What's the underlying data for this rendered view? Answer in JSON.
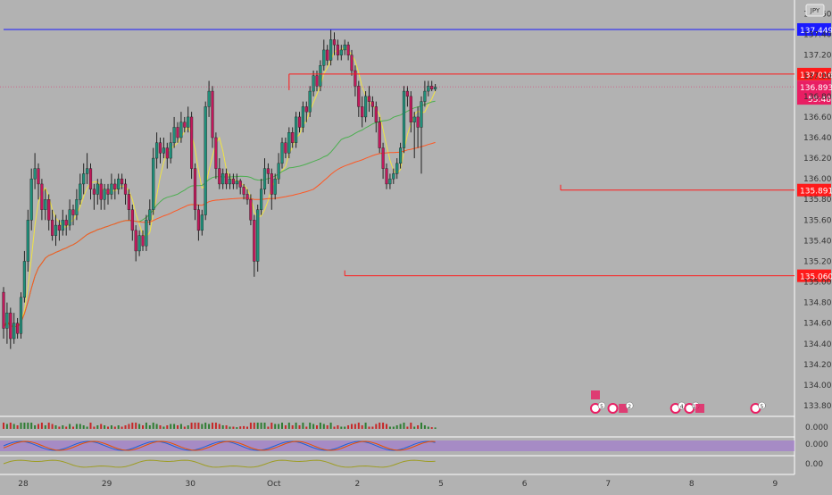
{
  "chart_data": {
    "type": "candlestick",
    "currency_badge": "JPY",
    "price_axis": {
      "ylim": [
        133.8,
        137.7
      ],
      "ticks": [
        "137.600",
        "137.400",
        "137.200",
        "137.000",
        "136.800",
        "136.600",
        "136.400",
        "136.200",
        "136.000",
        "135.800",
        "135.600",
        "135.400",
        "135.200",
        "135.000",
        "134.800",
        "134.600",
        "134.400",
        "134.200",
        "134.000",
        "133.800"
      ]
    },
    "x_ticks": [
      {
        "label": "28",
        "bar": 0
      },
      {
        "label": "29",
        "bar": 24
      },
      {
        "label": "30",
        "bar": 48
      },
      {
        "label": "Oct",
        "bar": 72
      },
      {
        "label": "2",
        "bar": 96
      },
      {
        "label": "5",
        "bar": 120
      },
      {
        "label": "6",
        "bar": 144
      },
      {
        "label": "7",
        "bar": 168
      },
      {
        "label": "8",
        "bar": 192
      },
      {
        "label": "9",
        "bar": 216
      }
    ],
    "levels": [
      {
        "price": 137.449,
        "label": "137.449",
        "color": "#1a1aff",
        "start_bar": 0
      },
      {
        "price": 137.016,
        "label": "137.016",
        "color": "#ff1a1a",
        "start_bar": 82
      },
      {
        "price": 135.891,
        "label": "135.891",
        "color": "#ff1a1a",
        "start_bar": 160
      },
      {
        "price": 135.06,
        "label": "135.060",
        "color": "#ff1a1a",
        "start_bar": 98
      }
    ],
    "last_price": {
      "price": 136.893,
      "label": "136.893",
      "countdown": "55:48",
      "color": "#e91e63"
    },
    "candles": [
      [
        134.9,
        134.55,
        134.95,
        134.45
      ],
      [
        134.55,
        134.7,
        134.8,
        134.4
      ],
      [
        134.7,
        134.45,
        134.75,
        134.35
      ],
      [
        134.45,
        134.6,
        134.7,
        134.4
      ],
      [
        134.6,
        134.5,
        134.65,
        134.45
      ],
      [
        134.5,
        134.85,
        134.9,
        134.45
      ],
      [
        134.85,
        135.2,
        135.3,
        134.8
      ],
      [
        135.2,
        135.6,
        135.7,
        135.1
      ],
      [
        135.6,
        136.0,
        136.1,
        135.5
      ],
      [
        136.0,
        136.1,
        136.25,
        135.9
      ],
      [
        136.1,
        135.95,
        136.15,
        135.8
      ],
      [
        135.95,
        135.7,
        136.0,
        135.6
      ],
      [
        135.7,
        135.8,
        135.9,
        135.6
      ],
      [
        135.8,
        135.6,
        135.85,
        135.5
      ],
      [
        135.6,
        135.45,
        135.7,
        135.4
      ],
      [
        135.45,
        135.55,
        135.65,
        135.35
      ],
      [
        135.55,
        135.5,
        135.6,
        135.4
      ],
      [
        135.5,
        135.6,
        135.7,
        135.45
      ],
      [
        135.6,
        135.55,
        135.65,
        135.45
      ],
      [
        135.55,
        135.7,
        135.8,
        135.5
      ],
      [
        135.7,
        135.65,
        135.75,
        135.55
      ],
      [
        135.65,
        135.8,
        135.9,
        135.6
      ],
      [
        135.8,
        135.95,
        136.05,
        135.75
      ],
      [
        135.95,
        136.05,
        136.15,
        135.85
      ],
      [
        136.05,
        136.1,
        136.25,
        135.95
      ],
      [
        136.1,
        135.9,
        136.15,
        135.8
      ],
      [
        135.9,
        135.85,
        135.95,
        135.7
      ],
      [
        135.85,
        135.95,
        136.0,
        135.75
      ],
      [
        135.95,
        135.8,
        136.0,
        135.7
      ],
      [
        135.8,
        135.9,
        135.95,
        135.7
      ],
      [
        135.9,
        135.85,
        135.95,
        135.75
      ],
      [
        135.85,
        135.95,
        136.05,
        135.8
      ],
      [
        135.95,
        135.9,
        136.0,
        135.8
      ],
      [
        135.9,
        136.0,
        136.05,
        135.85
      ],
      [
        136.0,
        135.95,
        136.05,
        135.9
      ],
      [
        135.95,
        135.85,
        136.0,
        135.75
      ],
      [
        135.85,
        135.7,
        135.9,
        135.6
      ],
      [
        135.7,
        135.5,
        135.75,
        135.4
      ],
      [
        135.5,
        135.3,
        135.55,
        135.2
      ],
      [
        135.3,
        135.45,
        135.5,
        135.25
      ],
      [
        135.45,
        135.35,
        135.5,
        135.3
      ],
      [
        135.35,
        135.6,
        135.65,
        135.3
      ],
      [
        135.6,
        135.7,
        135.8,
        135.55
      ],
      [
        135.7,
        136.2,
        136.3,
        135.65
      ],
      [
        136.2,
        136.35,
        136.45,
        136.1
      ],
      [
        136.35,
        136.25,
        136.4,
        136.15
      ],
      [
        136.25,
        136.3,
        136.4,
        136.2
      ],
      [
        136.3,
        136.2,
        136.35,
        136.1
      ],
      [
        136.2,
        136.35,
        136.45,
        136.15
      ],
      [
        136.35,
        136.5,
        136.6,
        136.3
      ],
      [
        136.5,
        136.4,
        136.55,
        136.35
      ],
      [
        136.4,
        136.55,
        136.65,
        136.35
      ],
      [
        136.55,
        136.5,
        136.6,
        136.45
      ],
      [
        136.5,
        136.6,
        136.7,
        136.45
      ],
      [
        136.6,
        136.1,
        136.65,
        136.0
      ],
      [
        136.1,
        135.7,
        136.15,
        135.6
      ],
      [
        135.7,
        135.5,
        135.75,
        135.4
      ],
      [
        135.5,
        135.65,
        135.7,
        135.45
      ],
      [
        135.65,
        136.7,
        136.75,
        135.6
      ],
      [
        136.7,
        136.85,
        136.95,
        136.6
      ],
      [
        136.85,
        136.4,
        136.9,
        136.3
      ],
      [
        136.4,
        136.1,
        136.45,
        136.0
      ],
      [
        136.1,
        135.95,
        136.2,
        135.9
      ],
      [
        135.95,
        136.05,
        136.1,
        135.9
      ],
      [
        136.05,
        135.95,
        136.1,
        135.9
      ],
      [
        135.95,
        136.0,
        136.05,
        135.9
      ],
      [
        136.0,
        135.95,
        136.05,
        135.9
      ],
      [
        135.95,
        135.98,
        136.05,
        135.9
      ],
      [
        135.98,
        135.92,
        136.0,
        135.85
      ],
      [
        135.92,
        135.85,
        135.95,
        135.8
      ],
      [
        135.85,
        135.8,
        135.9,
        135.75
      ],
      [
        135.8,
        135.6,
        135.85,
        135.55
      ],
      [
        135.6,
        135.2,
        135.65,
        135.05
      ],
      [
        135.2,
        135.7,
        135.75,
        135.1
      ],
      [
        135.7,
        135.9,
        136.0,
        135.65
      ],
      [
        135.9,
        136.1,
        136.2,
        135.85
      ],
      [
        136.1,
        136.05,
        136.15,
        135.95
      ],
      [
        136.05,
        135.85,
        136.1,
        135.7
      ],
      [
        135.85,
        136.0,
        136.05,
        135.8
      ],
      [
        136.0,
        136.15,
        136.25,
        135.95
      ],
      [
        136.15,
        136.35,
        136.4,
        136.1
      ],
      [
        136.35,
        136.25,
        136.4,
        136.2
      ],
      [
        136.25,
        136.45,
        136.5,
        136.2
      ],
      [
        136.45,
        136.35,
        136.5,
        136.3
      ],
      [
        136.35,
        136.6,
        136.65,
        136.3
      ],
      [
        136.6,
        136.5,
        136.65,
        136.45
      ],
      [
        136.5,
        136.7,
        136.75,
        136.45
      ],
      [
        136.7,
        136.65,
        136.75,
        136.55
      ],
      [
        136.65,
        136.85,
        136.9,
        136.6
      ],
      [
        136.85,
        137.0,
        137.05,
        136.8
      ],
      [
        137.0,
        136.9,
        137.05,
        136.85
      ],
      [
        136.9,
        137.1,
        137.15,
        136.85
      ],
      [
        137.1,
        137.25,
        137.35,
        137.05
      ],
      [
        137.25,
        137.15,
        137.3,
        137.1
      ],
      [
        137.15,
        137.35,
        137.45,
        137.1
      ],
      [
        137.35,
        137.3,
        137.42,
        137.2
      ],
      [
        137.3,
        137.2,
        137.35,
        137.15
      ],
      [
        137.2,
        137.25,
        137.3,
        137.15
      ],
      [
        137.25,
        137.3,
        137.35,
        137.2
      ],
      [
        137.3,
        137.2,
        137.33,
        137.15
      ],
      [
        137.2,
        137.05,
        137.25,
        137.0
      ],
      [
        137.05,
        136.9,
        137.1,
        136.8
      ],
      [
        136.9,
        136.7,
        136.95,
        136.6
      ],
      [
        136.7,
        136.6,
        136.8,
        136.5
      ],
      [
        136.6,
        136.8,
        136.85,
        136.55
      ],
      [
        136.8,
        136.75,
        136.9,
        136.65
      ],
      [
        136.75,
        136.7,
        136.8,
        136.6
      ],
      [
        136.7,
        136.55,
        136.75,
        136.45
      ],
      [
        136.55,
        136.3,
        136.6,
        136.25
      ],
      [
        136.3,
        136.1,
        136.35,
        136.0
      ],
      [
        136.1,
        135.95,
        136.15,
        135.9
      ],
      [
        135.95,
        136.0,
        136.05,
        135.9
      ],
      [
        136.0,
        136.05,
        136.1,
        135.95
      ],
      [
        136.05,
        136.15,
        136.2,
        136.0
      ],
      [
        136.15,
        136.3,
        136.35,
        136.1
      ],
      [
        136.3,
        136.85,
        136.9,
        136.25
      ],
      [
        136.85,
        136.8,
        136.9,
        136.7
      ],
      [
        136.8,
        136.55,
        136.85,
        136.45
      ],
      [
        136.55,
        136.6,
        136.65,
        136.2
      ],
      [
        136.6,
        136.5,
        136.7,
        136.3
      ],
      [
        136.5,
        136.75,
        136.8,
        136.05
      ],
      [
        136.75,
        136.85,
        136.95,
        136.7
      ],
      [
        136.85,
        136.9,
        136.95,
        136.8
      ],
      [
        136.9,
        136.87,
        136.95,
        136.85
      ],
      [
        136.87,
        136.89,
        136.92,
        136.85
      ]
    ],
    "ma_fast_color": "#f0e442",
    "ma_mid_color": "#4caf50",
    "ma_slow_color": "#ff5722",
    "event_icons": [
      {
        "bar": 170,
        "type": "flag"
      },
      {
        "bar": 170,
        "type": "dot",
        "label": "5"
      },
      {
        "bar": 175,
        "type": "dot"
      },
      {
        "bar": 178,
        "type": "flag",
        "label": "2"
      },
      {
        "bar": 193,
        "type": "dot",
        "label": "4"
      },
      {
        "bar": 197,
        "type": "dot",
        "label": "13"
      },
      {
        "bar": 200,
        "type": "flag"
      },
      {
        "bar": 216,
        "type": "dot",
        "label": "5"
      }
    ],
    "sub_panes": [
      {
        "name": "histogram",
        "value_label": "0.000"
      },
      {
        "name": "stoch-rsi",
        "value_label": "0.000"
      },
      {
        "name": "oscillator",
        "value_label": "0.00"
      }
    ]
  }
}
